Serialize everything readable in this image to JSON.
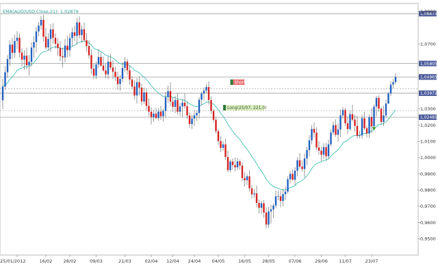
{
  "chart_data": {
    "type": "candlestick",
    "title": "",
    "ema_label": "EMA(AUD/USD,Close,21): 1,02879",
    "colors": {
      "up": "#1f5fbf",
      "down": "#d42020",
      "ema": "#3fbfb0",
      "level": "#aaaaaa",
      "tag": "#4a5a9a"
    },
    "y_axis": {
      "min": 0.94,
      "max": 1.095,
      "ticks": [
        {
          "value": 1.09,
          "label": "1,0900"
        },
        {
          "value": 1.07,
          "label": "1,0700"
        },
        {
          "value": 1.05,
          "label": "1,0500"
        },
        {
          "value": 1.03,
          "label": "1,0300"
        },
        {
          "value": 1.02,
          "label": "1,0200"
        },
        {
          "value": 1.01,
          "label": "1,0100"
        },
        {
          "value": 1.0,
          "label": "1,0000"
        },
        {
          "value": 0.99,
          "label": "0,9900"
        },
        {
          "value": 0.98,
          "label": "0,9800"
        },
        {
          "value": 0.97,
          "label": "0,9700"
        },
        {
          "value": 0.96,
          "label": "0,9600"
        },
        {
          "value": 0.95,
          "label": "0,9500"
        }
      ]
    },
    "x_axis": {
      "count": 168,
      "ticks": [
        {
          "index": 6,
          "label": "25/01/2012"
        },
        {
          "index": 18,
          "label": "16/02"
        },
        {
          "index": 28,
          "label": "28/02"
        },
        {
          "index": 39,
          "label": "09/03"
        },
        {
          "index": 51,
          "label": "21/03"
        },
        {
          "index": 62,
          "label": "02/04"
        },
        {
          "index": 71,
          "label": "12/04"
        },
        {
          "index": 80,
          "label": "24/04"
        },
        {
          "index": 90,
          "label": "04/05"
        },
        {
          "index": 101,
          "label": "16/05"
        },
        {
          "index": 111,
          "label": "28/05"
        },
        {
          "index": 122,
          "label": "07/06"
        },
        {
          "index": 133,
          "label": "29/06"
        },
        {
          "index": 143,
          "label": "11/07"
        },
        {
          "index": 154,
          "label": "23/07"
        }
      ]
    },
    "levels": [
      {
        "value": 1.0887,
        "label": "1,08875",
        "style": "solid"
      },
      {
        "value": 1.058,
        "label": "1,05805",
        "style": "solid"
      },
      {
        "value": 1.0497,
        "label": "1,04965",
        "style": "solid"
      },
      {
        "value": 1.0425,
        "label": "",
        "style": "dotted"
      },
      {
        "value": 1.0397,
        "label": "1,03972",
        "style": "solid"
      },
      {
        "value": 1.029,
        "label": "",
        "style": "dotted"
      },
      {
        "value": 1.0249,
        "label": "1,02485",
        "style": "solid"
      }
    ],
    "last_price_label": "1,04965",
    "annotations": [
      {
        "kind": "short",
        "index": 95,
        "value": 1.0465,
        "label": "Short"
      },
      {
        "kind": "long",
        "index": 92,
        "value": 1.0308,
        "label": "Long(25/07, 221,0)"
      }
    ],
    "marker": {
      "index": 155,
      "value": 1.018
    },
    "candles": [
      [
        1.0353,
        1.0486,
        1.03,
        1.0438
      ],
      [
        1.0438,
        1.0563,
        1.0418,
        1.0526
      ],
      [
        1.0526,
        1.0631,
        1.0492,
        1.0607
      ],
      [
        1.0607,
        1.0723,
        1.0564,
        1.0696
      ],
      [
        1.0696,
        1.0739,
        1.0609,
        1.0646
      ],
      [
        1.0646,
        1.0758,
        1.0614,
        1.0719
      ],
      [
        1.0719,
        1.078,
        1.0669,
        1.0739
      ],
      [
        1.0739,
        1.0765,
        1.0618,
        1.0647
      ],
      [
        1.0647,
        1.0674,
        1.0562,
        1.0604
      ],
      [
        1.0604,
        1.0662,
        1.0541,
        1.0628
      ],
      [
        1.0628,
        1.0677,
        1.0543,
        1.0569
      ],
      [
        1.0569,
        1.0633,
        1.0506,
        1.059
      ],
      [
        1.059,
        1.0712,
        1.0562,
        1.0678
      ],
      [
        1.0678,
        1.0748,
        1.0614,
        1.0712
      ],
      [
        1.0712,
        1.0805,
        1.0649,
        1.0778
      ],
      [
        1.0778,
        1.0835,
        1.0749,
        1.0814
      ],
      [
        1.0814,
        1.0873,
        1.0788,
        1.0849
      ],
      [
        1.0849,
        1.088,
        1.0715,
        1.0745
      ],
      [
        1.0745,
        1.0799,
        1.0667,
        1.0679
      ],
      [
        1.0679,
        1.0767,
        1.0659,
        1.0731
      ],
      [
        1.0731,
        1.0822,
        1.0651,
        1.079
      ],
      [
        1.079,
        1.0828,
        1.0701,
        1.0738
      ],
      [
        1.0738,
        1.0765,
        1.0673,
        1.0702
      ],
      [
        1.0702,
        1.0736,
        1.0627,
        1.0676
      ],
      [
        1.0676,
        1.0717,
        1.0593,
        1.0625
      ],
      [
        1.0625,
        1.0677,
        1.0555,
        1.0618
      ],
      [
        1.0618,
        1.0731,
        1.0587,
        1.069
      ],
      [
        1.069,
        1.0751,
        1.0617,
        1.0662
      ],
      [
        1.0662,
        1.0766,
        1.0622,
        1.0736
      ],
      [
        1.0736,
        1.0801,
        1.0687,
        1.0772
      ],
      [
        1.0772,
        1.0812,
        1.0718,
        1.075
      ],
      [
        1.075,
        1.0861,
        1.0697,
        1.0833
      ],
      [
        1.0833,
        1.087,
        1.0734,
        1.0755
      ],
      [
        1.0755,
        1.0815,
        1.0706,
        1.0791
      ],
      [
        1.0791,
        1.0834,
        1.0715,
        1.0724
      ],
      [
        1.0724,
        1.0768,
        1.0654,
        1.0687
      ],
      [
        1.0687,
        1.0723,
        1.061,
        1.0631
      ],
      [
        1.0631,
        1.0666,
        1.0516,
        1.0548
      ],
      [
        1.0548,
        1.058,
        1.0484,
        1.0505
      ],
      [
        1.0505,
        1.0593,
        1.0485,
        1.0574
      ],
      [
        1.0574,
        1.0667,
        1.055,
        1.062
      ],
      [
        1.062,
        1.0649,
        1.0558,
        1.0567
      ],
      [
        1.0567,
        1.0622,
        1.0528,
        1.0537
      ],
      [
        1.0537,
        1.058,
        1.0489,
        1.0513
      ],
      [
        1.0513,
        1.0626,
        1.0484,
        1.0591
      ],
      [
        1.0591,
        1.0641,
        1.0541,
        1.0555
      ],
      [
        1.0555,
        1.0599,
        1.0484,
        1.0529
      ],
      [
        1.0529,
        1.056,
        1.0472,
        1.0498
      ],
      [
        1.0498,
        1.0529,
        1.0418,
        1.0453
      ],
      [
        1.0453,
        1.051,
        1.0411,
        1.0485
      ],
      [
        1.0485,
        1.0588,
        1.0465,
        1.0553
      ],
      [
        1.0553,
        1.0621,
        1.053,
        1.0592
      ],
      [
        1.0592,
        1.0609,
        1.0511,
        1.0538
      ],
      [
        1.0538,
        1.0567,
        1.0449,
        1.0481
      ],
      [
        1.0481,
        1.05,
        1.0423,
        1.0438
      ],
      [
        1.0438,
        1.0475,
        1.0359,
        1.0383
      ],
      [
        1.0383,
        1.049,
        1.0334,
        1.0465
      ],
      [
        1.0465,
        1.05,
        1.0383,
        1.0431
      ],
      [
        1.0431,
        1.0455,
        1.0324,
        1.0346
      ],
      [
        1.0346,
        1.0432,
        1.0331,
        1.0402
      ],
      [
        1.0402,
        1.0425,
        1.029,
        1.0319
      ],
      [
        1.0319,
        1.0365,
        1.0255,
        1.0283
      ],
      [
        1.0283,
        1.031,
        1.0205,
        1.0249
      ],
      [
        1.0249,
        1.0296,
        1.0221,
        1.0271
      ],
      [
        1.0271,
        1.0307,
        1.0237,
        1.0244
      ],
      [
        1.0244,
        1.0305,
        1.0226,
        1.0284
      ],
      [
        1.0284,
        1.0321,
        1.0233,
        1.0255
      ],
      [
        1.0255,
        1.0303,
        1.0223,
        1.0288
      ],
      [
        1.0288,
        1.0404,
        1.025,
        1.0373
      ],
      [
        1.0373,
        1.0443,
        1.0338,
        1.041
      ],
      [
        1.041,
        1.0463,
        1.0318,
        1.0345
      ],
      [
        1.0345,
        1.037,
        1.0284,
        1.0313
      ],
      [
        1.0313,
        1.0379,
        1.0274,
        1.0355
      ],
      [
        1.0355,
        1.0397,
        1.0265,
        1.0283
      ],
      [
        1.0283,
        1.0338,
        1.0258,
        1.0316
      ],
      [
        1.0316,
        1.0361,
        1.0251,
        1.0339
      ],
      [
        1.0339,
        1.0395,
        1.0302,
        1.0317
      ],
      [
        1.0317,
        1.0343,
        1.0239,
        1.026
      ],
      [
        1.026,
        1.028,
        1.0183,
        1.0207
      ],
      [
        1.0207,
        1.0264,
        1.0176,
        1.0241
      ],
      [
        1.0241,
        1.0294,
        1.0194,
        1.0261
      ],
      [
        1.0261,
        1.0289,
        1.0226,
        1.0275
      ],
      [
        1.0275,
        1.0372,
        1.0239,
        1.0357
      ],
      [
        1.0357,
        1.0407,
        1.0325,
        1.0395
      ],
      [
        1.0395,
        1.0432,
        1.0353,
        1.0413
      ],
      [
        1.0413,
        1.0454,
        1.0396,
        1.0435
      ],
      [
        1.0435,
        1.047,
        1.0327,
        1.0355
      ],
      [
        1.0355,
        1.0377,
        1.0269,
        1.0288
      ],
      [
        1.0288,
        1.0301,
        1.0217,
        1.0233
      ],
      [
        1.0233,
        1.0254,
        1.0147,
        1.0163
      ],
      [
        1.0163,
        1.0177,
        1.0079,
        1.0102
      ],
      [
        1.0102,
        1.0133,
        1.0034,
        1.006
      ],
      [
        1.006,
        1.0102,
        1.0042,
        1.0082
      ],
      [
        1.0082,
        1.0119,
        0.9985,
        1.0004
      ],
      [
        1.0004,
        1.0043,
        0.991,
        0.9923
      ],
      [
        0.9923,
        0.9989,
        0.991,
        0.9976
      ],
      [
        0.9976,
        0.9995,
        0.9926,
        0.9954
      ],
      [
        0.9954,
        1.0001,
        0.9915,
        0.994
      ],
      [
        0.994,
        0.9999,
        0.9923,
        0.9977
      ],
      [
        0.9977,
        0.9989,
        0.9925,
        0.9951
      ],
      [
        0.9951,
        0.9972,
        0.9855,
        0.9874
      ],
      [
        0.9874,
        0.991,
        0.9822,
        0.9861
      ],
      [
        0.9861,
        0.9898,
        0.9832,
        0.9885
      ],
      [
        0.9885,
        0.9924,
        0.9791,
        0.9811
      ],
      [
        0.9811,
        0.9831,
        0.9749,
        0.9774
      ],
      [
        0.9774,
        0.9807,
        0.9751,
        0.978
      ],
      [
        0.978,
        0.9828,
        0.9694,
        0.9721
      ],
      [
        0.9721,
        0.9742,
        0.9656,
        0.9691
      ],
      [
        0.9691,
        0.9733,
        0.9653,
        0.9719
      ],
      [
        0.9719,
        0.9738,
        0.963,
        0.9662
      ],
      [
        0.9662,
        0.9694,
        0.9564,
        0.9588
      ],
      [
        0.9588,
        0.9696,
        0.9567,
        0.9669
      ],
      [
        0.9669,
        0.971,
        0.9594,
        0.9681
      ],
      [
        0.9681,
        0.9718,
        0.9626,
        0.9705
      ],
      [
        0.9705,
        0.9799,
        0.9689,
        0.9762
      ],
      [
        0.9762,
        0.9796,
        0.9738,
        0.9762
      ],
      [
        0.9762,
        0.9797,
        0.9694,
        0.9733
      ],
      [
        0.9733,
        0.9809,
        0.97,
        0.9775
      ],
      [
        0.9775,
        0.9823,
        0.9739,
        0.9791
      ],
      [
        0.9791,
        0.9884,
        0.9779,
        0.9867
      ],
      [
        0.9867,
        0.9918,
        0.9841,
        0.99
      ],
      [
        0.99,
        0.9928,
        0.9858,
        0.9864
      ],
      [
        0.9864,
        0.9942,
        0.9828,
        0.992
      ],
      [
        0.992,
        1.0002,
        0.9884,
        0.9984
      ],
      [
        0.9984,
        1.0029,
        0.9932,
        0.9945
      ],
      [
        0.9945,
        0.9983,
        0.9914,
        0.993
      ],
      [
        0.993,
        1.0025,
        0.9878,
        0.9995
      ],
      [
        0.9995,
        1.0067,
        0.9954,
        1.0047
      ],
      [
        1.0047,
        1.0138,
        1.001,
        1.0107
      ],
      [
        1.0107,
        1.0201,
        1.0083,
        1.0177
      ],
      [
        1.0177,
        1.0218,
        1.0124,
        1.0154
      ],
      [
        1.0154,
        1.0188,
        1.0046,
        1.0063
      ],
      [
        1.0063,
        1.0101,
        1.0017,
        1.0043
      ],
      [
        1.0043,
        1.0066,
        0.9978,
        1.0018
      ],
      [
        1.0018,
        1.0088,
        0.9993,
        1.0065
      ],
      [
        1.0065,
        1.0091,
        0.9985,
        1.0009
      ],
      [
        1.0009,
        1.011,
        0.9992,
        1.0082
      ],
      [
        1.0082,
        1.0176,
        1.0068,
        1.0155
      ],
      [
        1.0155,
        1.0223,
        1.0138,
        1.02
      ],
      [
        1.02,
        1.0236,
        1.0128,
        1.0141
      ],
      [
        1.0141,
        1.0211,
        1.0098,
        1.0174
      ],
      [
        1.0174,
        1.0295,
        1.0126,
        1.026
      ],
      [
        1.026,
        1.0312,
        1.024,
        1.0294
      ],
      [
        1.0294,
        1.0307,
        1.0195,
        1.0212
      ],
      [
        1.0212,
        1.0253,
        1.0146,
        1.0176
      ],
      [
        1.0176,
        1.0289,
        1.0164,
        1.0268
      ],
      [
        1.0268,
        1.0325,
        1.0223,
        1.0234
      ],
      [
        1.0234,
        1.0265,
        1.0161,
        1.0196
      ],
      [
        1.0196,
        1.0258,
        1.0117,
        1.0134
      ],
      [
        1.0134,
        1.0166,
        1.0119,
        1.0137
      ],
      [
        1.0137,
        1.0266,
        1.0117,
        1.0243
      ],
      [
        1.0243,
        1.0283,
        1.0169,
        1.0181
      ],
      [
        1.0181,
        1.0197,
        1.0124,
        1.0149
      ],
      [
        1.0149,
        1.0268,
        1.012,
        1.025
      ],
      [
        1.025,
        1.0306,
        1.015,
        1.0193
      ],
      [
        1.0193,
        1.0328,
        1.018,
        1.0314
      ],
      [
        1.0314,
        1.038,
        1.0256,
        1.0368
      ],
      [
        1.0368,
        1.0383,
        1.0283,
        1.0302
      ],
      [
        1.0302,
        1.0313,
        1.0204,
        1.022
      ],
      [
        1.022,
        1.032,
        1.0194,
        1.026
      ],
      [
        1.026,
        1.0356,
        1.0247,
        1.0333
      ],
      [
        1.0333,
        1.0402,
        1.0331,
        1.0395
      ],
      [
        1.0395,
        1.047,
        1.0379,
        1.045
      ],
      [
        1.045,
        1.0485,
        1.0427,
        1.0465
      ],
      [
        1.0465,
        1.052,
        1.0453,
        1.0497
      ]
    ]
  }
}
